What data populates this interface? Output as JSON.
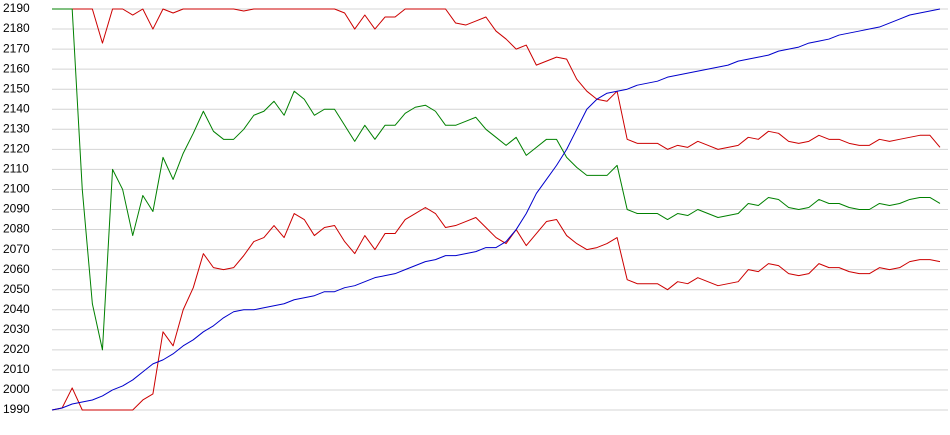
{
  "chart_data": {
    "type": "line",
    "ylim": [
      1990,
      2190
    ],
    "yticks": [
      1990,
      2000,
      2010,
      2020,
      2030,
      2040,
      2050,
      2060,
      2070,
      2080,
      2090,
      2100,
      2110,
      2120,
      2130,
      2140,
      2150,
      2160,
      2170,
      2180,
      2190
    ],
    "grid": true,
    "series": [
      {
        "color": "#cc0000",
        "values": [
          2190,
          2190,
          2190,
          2190,
          2190,
          2173,
          2190,
          2190,
          2187,
          2190,
          2180,
          2190,
          2188,
          2190,
          2190,
          2190,
          2190,
          2190,
          2190,
          2189,
          2190,
          2190,
          2190,
          2190,
          2190,
          2190,
          2190,
          2190,
          2190,
          2188,
          2180,
          2187,
          2180,
          2186,
          2186,
          2190,
          2190,
          2190,
          2190,
          2190,
          2183,
          2182,
          2184,
          2186,
          2179,
          2175,
          2170,
          2172,
          2162,
          2164,
          2166,
          2165,
          2155,
          2149,
          2145,
          2144,
          2149,
          2125,
          2123,
          2123,
          2123,
          2120,
          2122,
          2121,
          2124,
          2122,
          2120,
          2121,
          2122,
          2126,
          2125,
          2129,
          2128,
          2124,
          2123,
          2124,
          2127,
          2125,
          2125,
          2123,
          2122,
          2122,
          2125,
          2124,
          2125,
          2126,
          2127,
          2127,
          2121
        ]
      },
      {
        "color": "#008000",
        "values": [
          2190,
          2190,
          2190,
          2100,
          2043,
          2020,
          2110,
          2100,
          2077,
          2097,
          2089,
          2116,
          2105,
          2118,
          2128,
          2139,
          2129,
          2125,
          2125,
          2130,
          2137,
          2139,
          2144,
          2137,
          2149,
          2145,
          2137,
          2140,
          2140,
          2132,
          2124,
          2132,
          2125,
          2132,
          2132,
          2138,
          2141,
          2142,
          2139,
          2132,
          2132,
          2134,
          2136,
          2130,
          2126,
          2122,
          2126,
          2117,
          2121,
          2125,
          2125,
          2116,
          2111,
          2107,
          2107,
          2107,
          2112,
          2090,
          2088,
          2088,
          2088,
          2085,
          2088,
          2087,
          2090,
          2088,
          2086,
          2087,
          2088,
          2093,
          2092,
          2096,
          2095,
          2091,
          2090,
          2091,
          2095,
          2093,
          2093,
          2091,
          2090,
          2090,
          2093,
          2092,
          2093,
          2095,
          2096,
          2096,
          2093
        ]
      },
      {
        "color": "#cc0000",
        "values": [
          1990,
          1991,
          2001,
          1990,
          1990,
          1990,
          1990,
          1990,
          1990,
          1995,
          1998,
          2029,
          2022,
          2040,
          2051,
          2068,
          2061,
          2060,
          2061,
          2067,
          2074,
          2076,
          2082,
          2076,
          2088,
          2085,
          2077,
          2081,
          2082,
          2074,
          2068,
          2077,
          2070,
          2078,
          2078,
          2085,
          2088,
          2091,
          2088,
          2081,
          2082,
          2084,
          2086,
          2081,
          2076,
          2073,
          2080,
          2072,
          2078,
          2084,
          2085,
          2077,
          2073,
          2070,
          2071,
          2073,
          2076,
          2055,
          2053,
          2053,
          2053,
          2050,
          2054,
          2053,
          2056,
          2054,
          2052,
          2053,
          2054,
          2060,
          2059,
          2063,
          2062,
          2058,
          2057,
          2058,
          2063,
          2061,
          2061,
          2059,
          2058,
          2058,
          2061,
          2060,
          2061,
          2064,
          2065,
          2065,
          2064
        ]
      },
      {
        "color": "#0000cc",
        "values": [
          1990,
          1991,
          1993,
          1994,
          1995,
          1997,
          2000,
          2002,
          2005,
          2009,
          2013,
          2015,
          2018,
          2022,
          2025,
          2029,
          2032,
          2036,
          2039,
          2040,
          2040,
          2041,
          2042,
          2043,
          2045,
          2046,
          2047,
          2049,
          2049,
          2051,
          2052,
          2054,
          2056,
          2057,
          2058,
          2060,
          2062,
          2064,
          2065,
          2067,
          2067,
          2068,
          2069,
          2071,
          2071,
          2074,
          2080,
          2088,
          2098,
          2105,
          2112,
          2120,
          2130,
          2140,
          2145,
          2148,
          2149,
          2150,
          2152,
          2153,
          2154,
          2156,
          2157,
          2158,
          2159,
          2160,
          2161,
          2162,
          2164,
          2165,
          2166,
          2167,
          2169,
          2170,
          2171,
          2173,
          2174,
          2175,
          2177,
          2178,
          2179,
          2180,
          2181,
          2183,
          2185,
          2187,
          2188,
          2189,
          2190
        ]
      }
    ]
  }
}
